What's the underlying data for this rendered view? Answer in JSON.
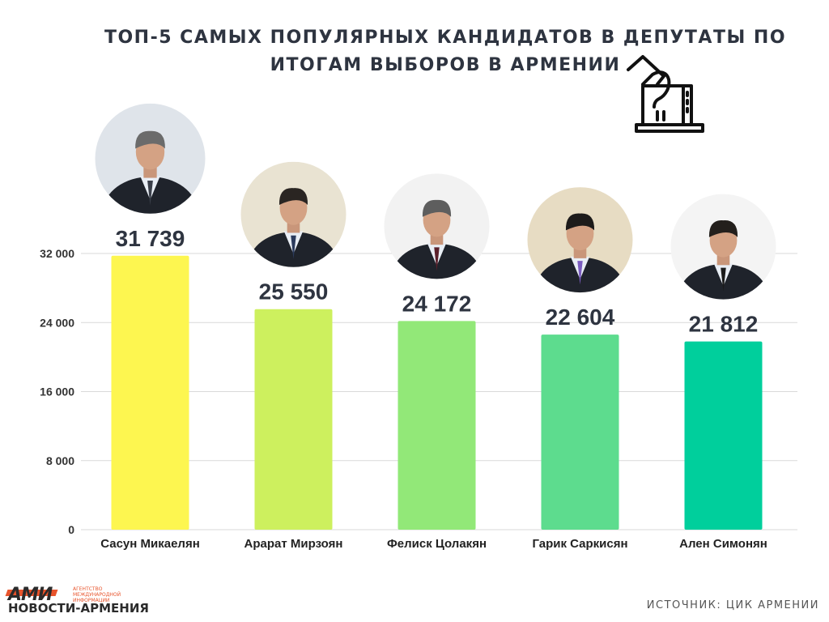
{
  "title_line1": "ТОП-5 САМЫХ ПОПУЛЯРНЫХ КАНДИДАТОВ В ДЕПУТАТЫ ПО",
  "title_line2": "ИТОГАМ ВЫБОРОВ В АРМЕНИИ",
  "source_label": "ИСТОЧНИК:",
  "source_value": "ЦИК АРМЕНИИ",
  "logo": {
    "mark": "АМИ",
    "tagline": "АГЕНТСТВО МЕЖДУНАРОДНОЙ ИНФОРМАЦИИ",
    "name": "НОВОСТИ-АРМЕНИЯ"
  },
  "icons": {
    "header": "ballot-box-icon",
    "avatar": "person-photo"
  },
  "colors": {
    "title": "#2e3440",
    "bars": [
      "#fdf650",
      "#cdf05e",
      "#92e878",
      "#5ddc8e",
      "#00cf9c"
    ],
    "grid": "#d9d9d9"
  },
  "chart_data": {
    "type": "bar",
    "title": "ТОП-5 САМЫХ ПОПУЛЯРНЫХ КАНДИДАТОВ В ДЕПУТАТЫ ПО ИТОГАМ ВЫБОРОВ В АРМЕНИИ",
    "categories": [
      "Сасун Микаелян",
      "Арарат Мирзоян",
      "Фелиск Цолакян",
      "Гарик Саркисян",
      "Ален Симонян"
    ],
    "values": [
      31739,
      25550,
      24172,
      22604,
      21812
    ],
    "value_labels": [
      "31 739",
      "25 550",
      "24 172",
      "22 604",
      "21 812"
    ],
    "yticks": [
      0,
      8000,
      16000,
      24000,
      32000
    ],
    "ytick_labels": [
      "0",
      "8 000",
      "16 000",
      "24 000",
      "32 000"
    ],
    "ylim": [
      0,
      32000
    ],
    "xlabel": "",
    "ylabel": "",
    "grid": true,
    "legend": "none"
  }
}
